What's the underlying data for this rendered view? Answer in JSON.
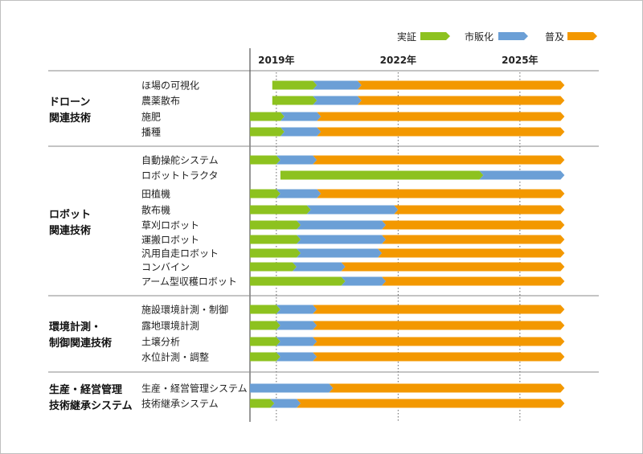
{
  "chart_data": {
    "type": "bar",
    "orientation": "horizontal-stacked-timeline",
    "x_axis_year_labels": [
      "2019年",
      "2022年",
      "2025年"
    ],
    "years": [
      2019,
      2022,
      2025
    ],
    "xlim": [
      2018.35,
      2026.25
    ],
    "legend": {
      "position": "top-right",
      "items": [
        {
          "name": "実証",
          "color": "#8dc21f"
        },
        {
          "name": "市販化",
          "color": "#6b9fd6"
        },
        {
          "name": "普及",
          "color": "#f39800"
        }
      ]
    },
    "groups": [
      {
        "title_lines": [
          "ドローン",
          "関連技術"
        ],
        "rows": [
          {
            "label": "ほ場の可視化",
            "segments": [
              2018.9,
              2019.9,
              2021.0,
              2026.0
            ]
          },
          {
            "label": "農薬散布",
            "segments": [
              2018.9,
              2019.9,
              2021.0,
              2026.0
            ]
          },
          {
            "label": "施肥",
            "segments": [
              2018.35,
              2019.1,
              2020.0,
              2026.0
            ]
          },
          {
            "label": "播種",
            "segments": [
              2018.35,
              2019.1,
              2020.0,
              2026.0
            ]
          }
        ]
      },
      {
        "title_lines": [
          "ロボット",
          "関連技術"
        ],
        "rows": [
          {
            "label": "自動操舵システム",
            "segments": [
              2018.35,
              2019.0,
              2019.9,
              2026.0
            ]
          },
          {
            "label": "ロボットトラクタ",
            "segments": [
              2019.1,
              2024.0,
              2026.0,
              2026.0
            ]
          },
          {
            "label": "田植機",
            "segments": [
              2018.35,
              2019.0,
              2020.0,
              2026.0
            ]
          },
          {
            "label": "散布機",
            "segments": [
              2018.35,
              2019.75,
              2021.9,
              2026.0
            ]
          },
          {
            "label": "草刈ロボット",
            "segments": [
              2018.35,
              2019.5,
              2021.6,
              2026.0
            ]
          },
          {
            "label": "運搬ロボット",
            "segments": [
              2018.35,
              2019.5,
              2021.6,
              2026.0
            ]
          },
          {
            "label": "汎用自走ロボット",
            "segments": [
              2018.35,
              2019.5,
              2021.5,
              2026.0
            ]
          },
          {
            "label": "コンバイン",
            "segments": [
              2018.35,
              2019.4,
              2020.6,
              2026.0
            ]
          },
          {
            "label": "アーム型収穫ロボット",
            "segments": [
              2018.35,
              2020.6,
              2021.6,
              2026.0
            ]
          }
        ]
      },
      {
        "title_lines": [
          "環境計測・",
          "制御関連技術"
        ],
        "rows": [
          {
            "label": "施設環境計測・制御",
            "segments": [
              2018.35,
              2019.0,
              2019.9,
              2026.0
            ]
          },
          {
            "label": "露地環境計測",
            "segments": [
              2018.35,
              2019.0,
              2019.9,
              2026.0
            ]
          },
          {
            "label": "土壌分析",
            "segments": [
              2018.35,
              2019.0,
              2019.9,
              2026.0
            ]
          },
          {
            "label": "水位計測・調整",
            "segments": [
              2018.35,
              2019.0,
              2019.9,
              2026.0
            ]
          }
        ]
      },
      {
        "title_lines": [
          "生産・経営管理",
          "技術継承システム"
        ],
        "rows": [
          {
            "label": "生産・経営管理システム",
            "segments": [
              2018.35,
              2018.35,
              2020.3,
              2026.0
            ]
          },
          {
            "label": "技術継承システム",
            "segments": [
              2018.35,
              2018.85,
              2019.5,
              2026.0
            ]
          }
        ]
      }
    ]
  }
}
